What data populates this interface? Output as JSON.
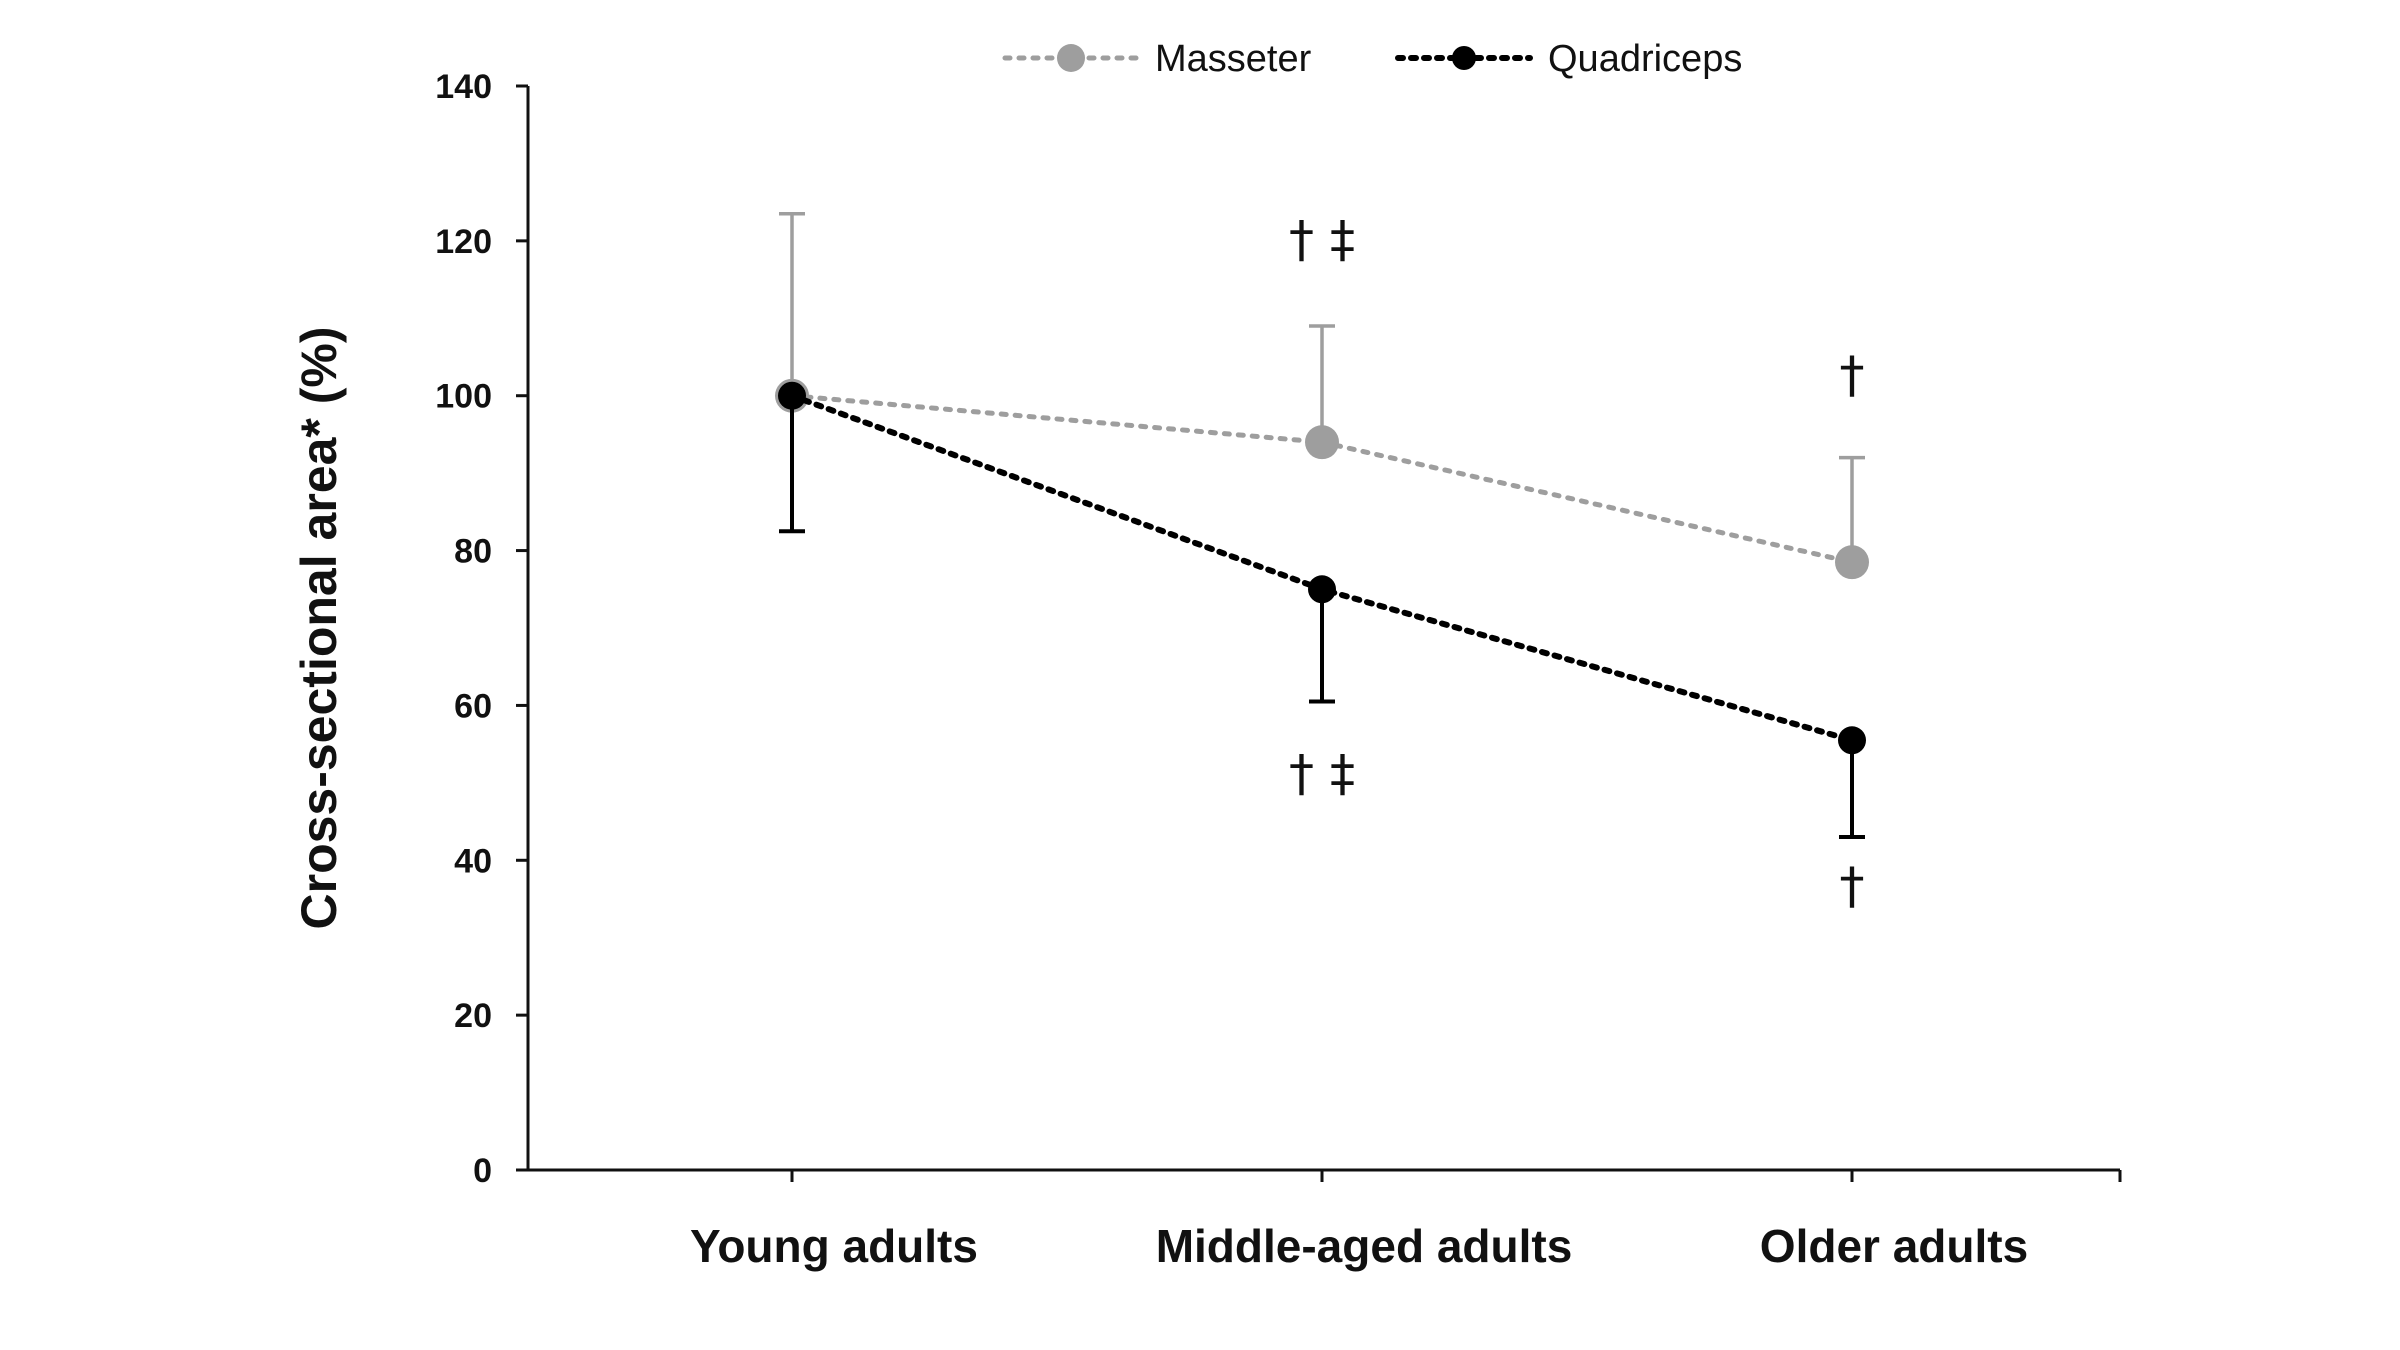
{
  "chart_data": {
    "type": "line",
    "categories": [
      "Young adults",
      "Middle-aged adults",
      "Older adults"
    ],
    "ylabel": "Cross-sectional  area* (%)",
    "xlabel": "",
    "ylim": [
      0,
      140
    ],
    "yticks": [
      0,
      20,
      40,
      60,
      80,
      100,
      120,
      140
    ],
    "grid": false,
    "legend_position": "top-center",
    "series": [
      {
        "name": "Masseter",
        "values": [
          100,
          94,
          78.5
        ],
        "error_upper": [
          123.5,
          109,
          92
        ],
        "color": "#9e9e9e",
        "line_style": "dotted"
      },
      {
        "name": "Quadriceps",
        "values": [
          100,
          75,
          55.5
        ],
        "error_lower": [
          82.5,
          60.5,
          43
        ],
        "color": "#000000",
        "line_style": "dotted"
      }
    ],
    "annotations": [
      {
        "text": "† ‡",
        "category": 1,
        "y": 118
      },
      {
        "text": "†",
        "category": 2,
        "y": 100.5
      },
      {
        "text": "† ‡",
        "category": 1,
        "y": 49
      },
      {
        "text": "†",
        "category": 2,
        "y": 34.5
      }
    ]
  }
}
